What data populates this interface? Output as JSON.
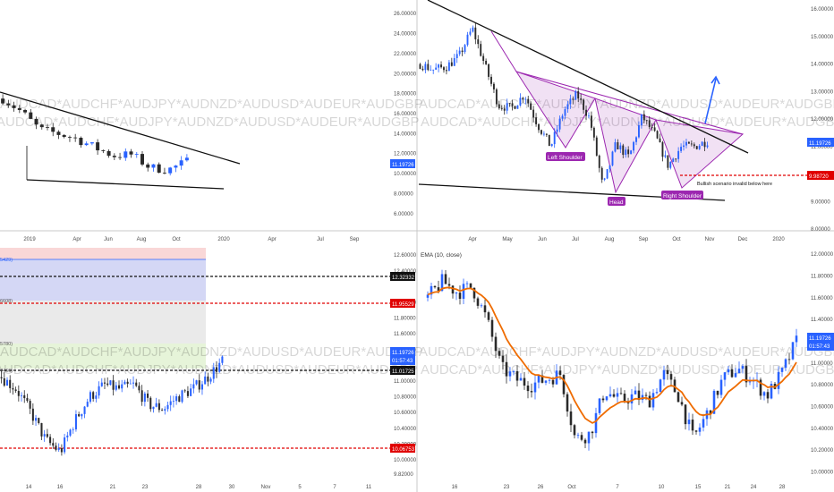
{
  "watermark": "AUDCAD*AUDCHF*AUDJPY*AUDNZD*AUDUSD*AUDEUR*AUDGBP",
  "colors": {
    "up": "#2962ff",
    "down": "#2a2a2a",
    "ema": "#ef6c00",
    "pattern": "#9c27b0",
    "red": "#e00000",
    "tagBlue": "#2962ff"
  },
  "chart_data": [
    {
      "panel": "top-left",
      "type": "candlestick",
      "timeframe": "1W",
      "x_ticks": [
        "2019",
        "Apr",
        "Jun",
        "Aug",
        "Oct",
        "2020",
        "Apr",
        "Jul",
        "Sep"
      ],
      "y_ticks": [
        "26.00000",
        "24.00000",
        "22.00000",
        "20.00000",
        "18.00000",
        "16.00000",
        "14.00000",
        "12.00000",
        "10.00000",
        "8.00000",
        "6.00000"
      ],
      "y_range": [
        5,
        27
      ],
      "price_tag": "11.19726",
      "trendlines": [
        "descending resistance",
        "descending support"
      ]
    },
    {
      "panel": "top-right",
      "type": "candlestick",
      "timeframe": "1D",
      "x_ticks": [
        "Apr",
        "May",
        "Jun",
        "Jul",
        "Aug",
        "Sep",
        "Oct",
        "Nov",
        "Dec",
        "2020"
      ],
      "y_ticks": [
        "16.00000",
        "15.00000",
        "14.00000",
        "13.00000",
        "12.00000",
        "11.00000",
        "10.00000",
        "9.00000",
        "8.00000"
      ],
      "y_range": [
        8,
        16.2
      ],
      "price_tag": "11.19726",
      "level_tag": "9.98720",
      "annotations": [
        "Left Shoulder",
        "Head",
        "Right Shoulder",
        "Bullish scenario invalid below here"
      ],
      "pattern": "inverse head and shoulders"
    },
    {
      "panel": "bottom-left",
      "type": "candlestick",
      "timeframe": "240",
      "x_ticks": [
        "14",
        "16",
        "21",
        "23",
        "28",
        "30",
        "Nov",
        "5",
        "7",
        "11"
      ],
      "y_ticks": [
        "12.60000",
        "12.40000",
        "12.00000",
        "11.80000",
        "11.60000",
        "11.40000",
        "11.00000",
        "10.80000",
        "10.60000",
        "10.40000",
        "10.20000",
        "10.00000",
        "9.82000"
      ],
      "y_range": [
        9.75,
        12.75
      ],
      "level_tags": [
        "12.32332",
        "11.95529",
        "11.01725",
        "10.06753"
      ],
      "price_tag": "11.19726",
      "countdown": "01:57:43",
      "left_edge_labels": [
        "5429)",
        "6608)",
        "5780)",
        "7466)"
      ]
    },
    {
      "panel": "bottom-right",
      "type": "candlestick",
      "timeframe": "240",
      "legend": "EMA (10, close)",
      "x_ticks": [
        "16",
        "23",
        "26",
        "Oct",
        "7",
        "10",
        "15",
        "21",
        "24",
        "28"
      ],
      "y_ticks": [
        "12.00000",
        "11.80000",
        "11.60000",
        "11.40000",
        "11.20000",
        "11.00000",
        "10.80000",
        "10.60000",
        "10.40000",
        "10.20000",
        "10.00000"
      ],
      "y_range": [
        9.93,
        12.1
      ],
      "price_tag": "11.19726",
      "countdown": "01:57:43"
    }
  ]
}
